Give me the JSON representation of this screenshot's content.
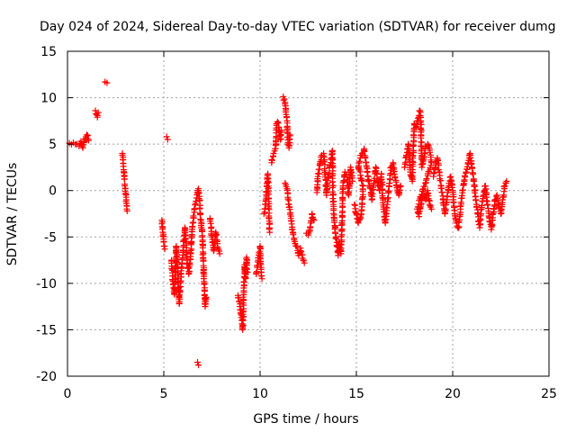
{
  "chart_data": {
    "type": "scatter",
    "title": "Day 024 of 2024, Sidereal Day-to-day VTEC variation (SDTVAR) for receiver dumg",
    "xlabel": "GPS time / hours",
    "ylabel": "SDTVAR / TECUs",
    "xlim": [
      0,
      25
    ],
    "ylim": [
      -20,
      15
    ],
    "xticks": [
      0,
      5,
      10,
      15,
      20,
      25
    ],
    "yticks": [
      -20,
      -15,
      -10,
      -5,
      0,
      5,
      10,
      15
    ],
    "xtick_labels": [
      "0",
      "5",
      "10",
      "15",
      "20",
      "25"
    ],
    "ytick_labels": [
      "-20",
      "-15",
      "-10",
      "-5",
      "0",
      "5",
      "10",
      "15"
    ],
    "grid": true,
    "marker": "plus",
    "color": "#ff0000",
    "segments": [
      [
        [
          0.1,
          5.1
        ],
        [
          0.6,
          4.8
        ],
        [
          0.7,
          5.3
        ],
        [
          0.8,
          4.6
        ],
        [
          0.9,
          5.5
        ],
        [
          1.0,
          6.0
        ],
        [
          1.1,
          5.4
        ]
      ],
      [
        [
          1.45,
          8.6
        ],
        [
          1.5,
          8.2
        ],
        [
          1.55,
          7.9
        ],
        [
          1.6,
          8.4
        ]
      ],
      [
        [
          1.95,
          11.7
        ],
        [
          2.05,
          11.6
        ]
      ],
      [
        [
          2.85,
          4.0
        ],
        [
          2.9,
          2.6
        ],
        [
          2.95,
          1.5
        ],
        [
          3.0,
          0.2
        ],
        [
          3.05,
          -1.0
        ],
        [
          3.1,
          -2.2
        ]
      ],
      [
        [
          4.9,
          -3.2
        ],
        [
          4.95,
          -4.5
        ],
        [
          5.0,
          -5.5
        ],
        [
          5.05,
          -6.3
        ]
      ],
      [
        [
          5.15,
          5.8
        ],
        [
          5.2,
          5.5
        ]
      ],
      [
        [
          5.4,
          -7.5
        ],
        [
          5.45,
          -9.2
        ],
        [
          5.5,
          -10.5
        ],
        [
          5.55,
          -11.2
        ],
        [
          5.6,
          -9.5
        ],
        [
          5.65,
          -6.0
        ],
        [
          5.7,
          -8.0
        ],
        [
          5.8,
          -12.2
        ],
        [
          5.9,
          -9.0
        ],
        [
          6.0,
          -6.5
        ],
        [
          6.1,
          -4.0
        ],
        [
          6.2,
          -7.5
        ],
        [
          6.3,
          -9.0
        ],
        [
          6.4,
          -6.8
        ],
        [
          6.5,
          -3.5
        ],
        [
          6.6,
          -2.0
        ],
        [
          6.7,
          -0.8
        ],
        [
          6.8,
          0.2
        ],
        [
          6.9,
          -2.5
        ],
        [
          7.0,
          -5.0
        ],
        [
          7.05,
          -7.5
        ],
        [
          7.1,
          -10.0
        ],
        [
          7.15,
          -12.5
        ],
        [
          7.2,
          -11.5
        ]
      ],
      [
        [
          6.75,
          -18.5
        ],
        [
          6.8,
          -18.8
        ]
      ],
      [
        [
          7.4,
          -3.0
        ],
        [
          7.5,
          -5.0
        ],
        [
          7.6,
          -6.5
        ],
        [
          7.7,
          -4.5
        ],
        [
          7.8,
          -6.2
        ],
        [
          7.9,
          -6.8
        ]
      ],
      [
        [
          8.85,
          -11.3
        ],
        [
          8.95,
          -12.5
        ],
        [
          9.05,
          -14.0
        ],
        [
          9.1,
          -15.0
        ],
        [
          9.15,
          -10.5
        ],
        [
          9.2,
          -8.0
        ],
        [
          9.25,
          -9.5
        ],
        [
          9.3,
          -7.2
        ],
        [
          9.35,
          -8.8
        ]
      ],
      [
        [
          9.8,
          -9.0
        ],
        [
          9.9,
          -7.5
        ],
        [
          10.0,
          -6.0
        ],
        [
          10.05,
          -8.5
        ],
        [
          10.1,
          -9.5
        ]
      ],
      [
        [
          10.2,
          -2.5
        ],
        [
          10.25,
          -2.0
        ],
        [
          10.3,
          -1.0
        ],
        [
          10.35,
          0.5
        ],
        [
          10.4,
          1.8
        ],
        [
          10.5,
          -4.5
        ]
      ],
      [
        [
          10.6,
          3.0
        ],
        [
          10.7,
          4.0
        ],
        [
          10.8,
          4.5
        ],
        [
          10.85,
          7.2
        ],
        [
          10.9,
          7.4
        ],
        [
          11.0,
          6.5
        ],
        [
          11.05,
          5.5
        ],
        [
          11.1,
          6.5
        ]
      ],
      [
        [
          11.2,
          10.1
        ],
        [
          11.3,
          9.5
        ],
        [
          11.35,
          8.2
        ],
        [
          11.4,
          7.5
        ],
        [
          11.45,
          5.0
        ],
        [
          11.5,
          4.6
        ],
        [
          11.55,
          6.0
        ]
      ],
      [
        [
          11.3,
          0.8
        ],
        [
          11.4,
          0.2
        ],
        [
          11.5,
          -1.5
        ],
        [
          11.6,
          -3.0
        ],
        [
          11.7,
          -4.5
        ],
        [
          11.8,
          -5.5
        ],
        [
          11.9,
          -6.0
        ],
        [
          12.0,
          -7.0
        ],
        [
          12.1,
          -6.2
        ],
        [
          12.2,
          -7.3
        ],
        [
          12.3,
          -7.8
        ]
      ],
      [
        [
          12.4,
          -4.6
        ],
        [
          12.5,
          -4.8
        ],
        [
          12.6,
          -4.0
        ],
        [
          12.7,
          -2.5
        ],
        [
          12.8,
          -3.2
        ]
      ],
      [
        [
          12.95,
          -0.2
        ],
        [
          13.0,
          1.5
        ],
        [
          13.1,
          2.8
        ],
        [
          13.2,
          3.8
        ],
        [
          13.3,
          4.0
        ],
        [
          13.4,
          1.2
        ],
        [
          13.45,
          -0.5
        ],
        [
          13.5,
          0.8
        ],
        [
          13.6,
          2.5
        ],
        [
          13.7,
          3.5
        ],
        [
          13.75,
          4.3
        ],
        [
          13.8,
          -1.5
        ],
        [
          13.85,
          -3.0
        ],
        [
          13.9,
          -4.5
        ],
        [
          14.0,
          -6.0
        ],
        [
          14.05,
          -7.0
        ],
        [
          14.1,
          -5.5
        ],
        [
          14.2,
          -6.8
        ],
        [
          14.3,
          0.5
        ],
        [
          14.4,
          2.0
        ],
        [
          14.5,
          1.5
        ],
        [
          14.6,
          -0.5
        ],
        [
          14.7,
          2.5
        ],
        [
          14.8,
          1.0
        ]
      ],
      [
        [
          14.9,
          -1.5
        ],
        [
          15.0,
          -2.5
        ],
        [
          15.1,
          -3.5
        ],
        [
          15.2,
          -3.0
        ],
        [
          15.3,
          -1.5
        ],
        [
          15.35,
          0.5
        ],
        [
          15.1,
          2.5
        ],
        [
          15.2,
          3.5
        ],
        [
          15.3,
          4.0
        ],
        [
          15.4,
          4.5
        ],
        [
          15.5,
          3.0
        ],
        [
          15.6,
          1.5
        ],
        [
          15.7,
          0.5
        ],
        [
          15.8,
          -1.0
        ],
        [
          15.9,
          0.8
        ],
        [
          16.0,
          2.5
        ],
        [
          16.1,
          1.0
        ],
        [
          16.2,
          0.0
        ],
        [
          16.3,
          1.8
        ],
        [
          16.4,
          -2.0
        ],
        [
          16.5,
          -3.5
        ],
        [
          16.6,
          -1.5
        ],
        [
          16.7,
          0.5
        ],
        [
          16.8,
          2.5
        ],
        [
          16.9,
          3.0
        ],
        [
          17.0,
          1.5
        ],
        [
          17.1,
          0.5
        ],
        [
          17.2,
          -0.5
        ],
        [
          17.3,
          0.5
        ]
      ],
      [
        [
          17.5,
          2.5
        ],
        [
          17.6,
          3.8
        ],
        [
          17.7,
          5.0
        ],
        [
          17.8,
          2.0
        ],
        [
          17.9,
          1.0
        ],
        [
          18.0,
          7.2
        ],
        [
          18.1,
          6.8
        ],
        [
          18.2,
          7.8
        ],
        [
          18.3,
          8.6
        ],
        [
          18.35,
          7.5
        ],
        [
          18.4,
          2.5
        ],
        [
          18.5,
          3.5
        ],
        [
          18.6,
          4.8
        ],
        [
          18.7,
          5.0
        ],
        [
          18.8,
          4.5
        ],
        [
          18.9,
          3.0
        ],
        [
          18.15,
          -2.0
        ],
        [
          18.25,
          -2.8
        ],
        [
          18.35,
          -1.5
        ],
        [
          18.5,
          -0.5
        ],
        [
          18.6,
          -1.0
        ],
        [
          18.7,
          0.0
        ],
        [
          18.8,
          -1.5
        ],
        [
          18.9,
          -2.0
        ]
      ],
      [
        [
          19.0,
          1.5
        ],
        [
          19.1,
          2.5
        ],
        [
          19.2,
          3.5
        ],
        [
          19.3,
          2.0
        ],
        [
          19.4,
          0.5
        ],
        [
          19.5,
          -1.0
        ],
        [
          19.6,
          -2.5
        ],
        [
          19.7,
          -1.0
        ],
        [
          19.8,
          0.5
        ],
        [
          19.9,
          1.5
        ],
        [
          20.0,
          0.0
        ],
        [
          20.1,
          -2.5
        ],
        [
          20.2,
          -3.5
        ],
        [
          20.3,
          -4.0
        ],
        [
          20.4,
          -2.0
        ],
        [
          20.5,
          0.0
        ],
        [
          20.6,
          1.0
        ],
        [
          20.7,
          2.0
        ],
        [
          20.8,
          3.0
        ],
        [
          20.9,
          4.0
        ],
        [
          21.0,
          2.5
        ],
        [
          21.1,
          1.0
        ],
        [
          21.2,
          -1.0
        ],
        [
          21.3,
          -2.5
        ],
        [
          21.4,
          -4.0
        ],
        [
          21.5,
          -2.0
        ],
        [
          21.6,
          -0.5
        ],
        [
          21.7,
          0.5
        ],
        [
          21.8,
          -1.5
        ],
        [
          21.9,
          -3.0
        ],
        [
          22.0,
          -4.2
        ],
        [
          22.1,
          -2.5
        ],
        [
          22.2,
          -1.0
        ],
        [
          22.3,
          -0.5
        ],
        [
          22.4,
          -1.8
        ],
        [
          22.5,
          -2.5
        ],
        [
          22.6,
          -1.0
        ],
        [
          22.7,
          0.5
        ],
        [
          22.8,
          1.0
        ]
      ]
    ]
  }
}
